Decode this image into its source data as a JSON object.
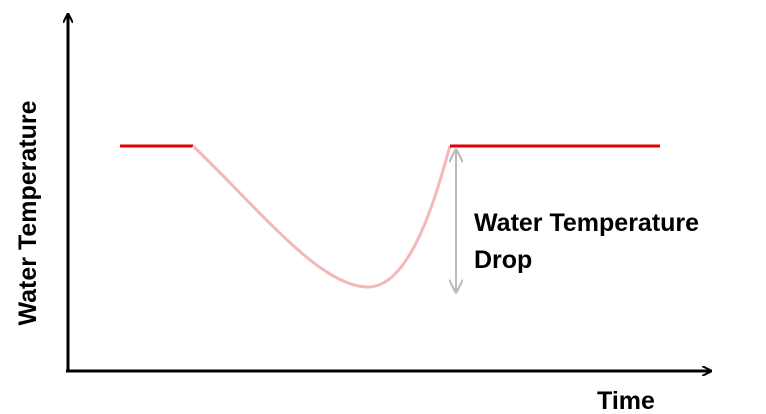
{
  "axes": {
    "y_label": "Water Temperature",
    "x_label": "Time"
  },
  "annotation": {
    "lines": [
      "Water Temperature",
      "Drop"
    ]
  }
}
